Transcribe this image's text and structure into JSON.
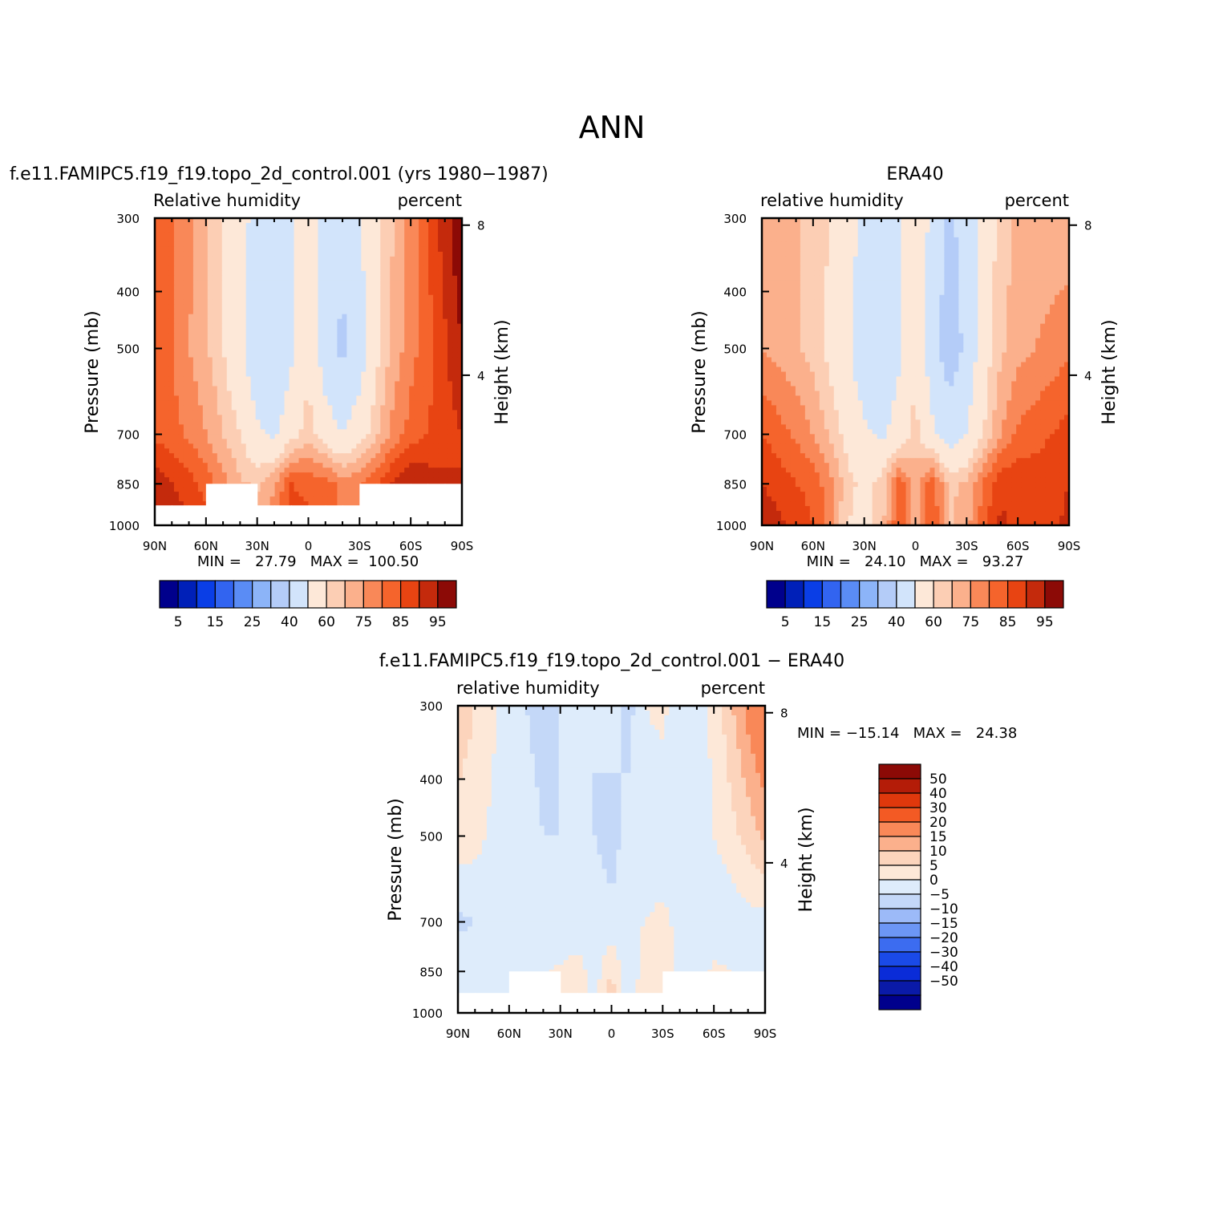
{
  "title": "ANN",
  "palettes": {
    "rh": [
      "#00008c",
      "#0020b8",
      "#0a3ee6",
      "#3264f0",
      "#5a8cf5",
      "#8cb4f8",
      "#b4ccf8",
      "#d2e4fb",
      "#fde8d8",
      "#fcceb4",
      "#fbb08c",
      "#f98858",
      "#f5642c",
      "#e84412",
      "#c42a0c",
      "#8c0a06"
    ],
    "diff": [
      "#00008c",
      "#0a1aa8",
      "#0a2cd8",
      "#1a4ae8",
      "#3c6cf0",
      "#6c96f5",
      "#9cbaf8",
      "#c4d8f8",
      "#deecfb",
      "#fde8d8",
      "#fcd4bc",
      "#fbb08c",
      "#f98858",
      "#f35a24",
      "#e0380c",
      "#b41c08",
      "#8c0a06"
    ]
  },
  "colorbars": {
    "rh": {
      "labels": [
        "5",
        "15",
        "25",
        "40",
        "60",
        "75",
        "85",
        "95"
      ]
    },
    "diff": {
      "labels": [
        "50",
        "40",
        "30",
        "20",
        "15",
        "10",
        "5",
        "0",
        "−5",
        "−10",
        "−15",
        "−20",
        "−30",
        "−40",
        "−50"
      ]
    }
  },
  "chart_data": [
    {
      "type": "heatmap",
      "title": "f.e11.FAMIPC5.f19_f19.topo_2d_control.001 (yrs 1980−1987)",
      "subtitle_left": "Relative humidity",
      "subtitle_right": "percent",
      "ylabel": "Pressure (mb)",
      "ylabel_right": "Height (km)",
      "x_ticks": [
        "90N",
        "60N",
        "30N",
        "0",
        "30S",
        "60S",
        "90S"
      ],
      "y_ticks": [
        "300",
        "400",
        "500",
        "700",
        "850",
        "1000"
      ],
      "y_right_ticks": [
        "8",
        "4"
      ],
      "xlim": [
        90,
        -90
      ],
      "ylim": [
        1000,
        300
      ],
      "y_scale": "log",
      "min": "27.79",
      "max": "100.50",
      "stats_text": "MIN =   27.79   MAX =  100.50",
      "levels": [
        5,
        10,
        15,
        20,
        25,
        30,
        40,
        50,
        60,
        65,
        70,
        75,
        80,
        85,
        90,
        95
      ],
      "profiles": {
        "lat": [
          90,
          80,
          70,
          60,
          50,
          40,
          30,
          20,
          10,
          0,
          -10,
          -20,
          -30,
          -40,
          -50,
          -60,
          -70,
          -80,
          -90
        ],
        "p300": [
          79,
          76,
          72,
          66,
          60,
          54,
          46,
          43,
          48,
          58,
          46,
          43,
          50,
          58,
          65,
          72,
          80,
          88,
          95
        ],
        "p500": [
          78,
          75,
          70,
          66,
          60,
          52,
          42,
          40,
          48,
          58,
          44,
          38,
          44,
          58,
          67,
          73,
          78,
          84,
          90
        ],
        "p700": [
          79,
          77,
          74,
          70,
          65,
          60,
          52,
          48,
          57,
          63,
          55,
          50,
          56,
          64,
          72,
          77,
          80,
          83,
          85
        ],
        "p850": [
          88,
          85,
          82,
          78,
          72,
          66,
          64,
          70,
          80,
          78,
          78,
          73,
          74,
          79,
          86,
          90,
          88,
          86,
          85
        ],
        "p1000": [
          92,
          90,
          86,
          82,
          76,
          72,
          68,
          72,
          84,
          82,
          80,
          74,
          76,
          82,
          88,
          90,
          88,
          86,
          85
        ]
      },
      "surface_mask_mb": [
        925,
        925,
        925,
        850,
        850,
        850,
        850,
        925,
        925,
        925,
        925,
        925,
        850,
        850,
        850,
        850,
        850,
        850,
        850
      ]
    },
    {
      "type": "heatmap",
      "title": "ERA40",
      "subtitle_left": "relative humidity",
      "subtitle_right": "percent",
      "ylabel": "Pressure (mb)",
      "ylabel_right": "Height (km)",
      "x_ticks": [
        "90N",
        "60N",
        "30N",
        "0",
        "30S",
        "60S",
        "90S"
      ],
      "y_ticks": [
        "300",
        "400",
        "500",
        "700",
        "850",
        "1000"
      ],
      "y_right_ticks": [
        "8",
        "4"
      ],
      "xlim": [
        90,
        -90
      ],
      "ylim": [
        1000,
        300
      ],
      "y_scale": "log",
      "min": "24.10",
      "max": "93.27",
      "stats_text": "MIN =   24.10   MAX =   93.27",
      "levels": [
        5,
        10,
        15,
        20,
        25,
        30,
        40,
        50,
        60,
        65,
        70,
        75,
        80,
        85,
        90,
        95
      ],
      "profiles": {
        "lat": [
          90,
          80,
          70,
          60,
          50,
          40,
          30,
          20,
          10,
          0,
          -10,
          -20,
          -30,
          -40,
          -50,
          -60,
          -70,
          -80,
          -90
        ],
        "p300": [
          66,
          66,
          66,
          63,
          60,
          56,
          46,
          43,
          48,
          56,
          48,
          38,
          44,
          55,
          62,
          66,
          66,
          66,
          66
        ],
        "p500": [
          70,
          68,
          66,
          63,
          58,
          52,
          42,
          40,
          48,
          60,
          42,
          35,
          42,
          56,
          64,
          68,
          70,
          72,
          74
        ],
        "p700": [
          80,
          77,
          74,
          70,
          64,
          58,
          52,
          48,
          54,
          62,
          52,
          45,
          50,
          60,
          70,
          76,
          78,
          80,
          82
        ],
        "p850": [
          85,
          83,
          80,
          78,
          72,
          62,
          58,
          62,
          78,
          68,
          78,
          64,
          66,
          76,
          84,
          84,
          83,
          84,
          85
        ],
        "p1000": [
          88,
          86,
          84,
          80,
          72,
          60,
          58,
          62,
          80,
          66,
          80,
          64,
          68,
          78,
          86,
          84,
          82,
          84,
          86
        ]
      }
    },
    {
      "type": "heatmap",
      "title": "f.e11.FAMIPC5.f19_f19.topo_2d_control.001 − ERA40",
      "subtitle_left": "relative humidity",
      "subtitle_right": "percent",
      "ylabel": "Pressure (mb)",
      "ylabel_right": "Height (km)",
      "x_ticks": [
        "90N",
        "60N",
        "30N",
        "0",
        "30S",
        "60S",
        "90S"
      ],
      "y_ticks": [
        "300",
        "400",
        "500",
        "700",
        "850",
        "1000"
      ],
      "y_right_ticks": [
        "8",
        "4"
      ],
      "xlim": [
        90,
        -90
      ],
      "ylim": [
        1000,
        300
      ],
      "y_scale": "log",
      "min": "−15.14",
      "max": "24.38",
      "stats_text": "MIN = −15.14   MAX =   24.38",
      "levels": [
        -50,
        -40,
        -30,
        -20,
        -15,
        -10,
        -5,
        0,
        5,
        10,
        15,
        20,
        30,
        40,
        50
      ],
      "surface_mask_mb": [
        925,
        925,
        925,
        850,
        850,
        850,
        850,
        925,
        925,
        925,
        925,
        925,
        850,
        850,
        850,
        850,
        850,
        850,
        850
      ]
    }
  ]
}
